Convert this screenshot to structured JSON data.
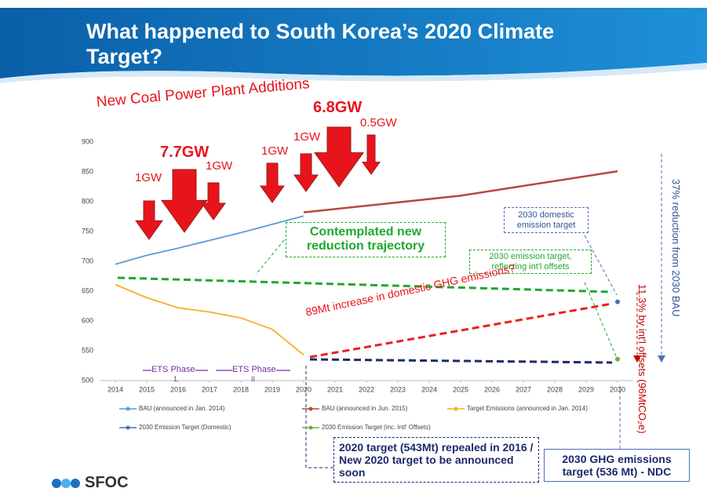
{
  "chart_data": {
    "type": "line",
    "title": "What happened to South Korea’s 2020 Climate Target?",
    "xlim": [
      2013.5,
      2030.5
    ],
    "xticks": [
      2014,
      2015,
      2016,
      2017,
      2018,
      2019,
      2020,
      2021,
      2022,
      2023,
      2024,
      2025,
      2026,
      2027,
      2028,
      2029,
      2030
    ],
    "ylim": [
      500,
      900
    ],
    "yticks": [
      500,
      550,
      600,
      650,
      700,
      750,
      800,
      850,
      900
    ],
    "grid": false,
    "series": [
      {
        "name": "BAU (announced in Jan. 2014)",
        "color": "#5b9bd5",
        "x": [
          2014,
          2015,
          2016,
          2017,
          2018,
          2019,
          2020
        ],
        "values": [
          695,
          710,
          722,
          735,
          748,
          762,
          776
        ]
      },
      {
        "name": "BAU (announced in Jun. 2015)",
        "color": "#b5493f",
        "x": [
          2020,
          2025,
          2030
        ],
        "values": [
          782,
          810,
          851
        ]
      },
      {
        "name": "Target  Emissions (announced in Jan. 2014)",
        "color": "#f4b022",
        "x": [
          2014,
          2015,
          2016,
          2017,
          2018,
          2019,
          2020
        ],
        "values": [
          661,
          639,
          622,
          615,
          605,
          586,
          543
        ]
      },
      {
        "name": "2030 Emission Target (Domestic)",
        "color": "#4a6fb5",
        "x": [
          2030
        ],
        "values": [
          632
        ]
      },
      {
        "name": "2030 Emission Target (inc. Intl' Offsets)",
        "color": "#70ad47",
        "x": [
          2030
        ],
        "values": [
          536
        ]
      }
    ],
    "annotations": [
      "New Coal Power Plant Additions",
      "7.7GW",
      "6.8GW",
      "1GW",
      "1GW",
      "1GW",
      "1GW",
      "0.5GW",
      "ETS Phase",
      "1",
      "ETS Phase",
      "II",
      "Contemplated new reduction trajectory",
      "2030 domestic emission target",
      "2030 emission target, reflecting int'l offsets",
      "89Mt increase in domestic GHG emissions?",
      "11.3% by int'l offsets (96MtCO₂e)",
      "37% reduction from 2030 BAU",
      "2020 target (543Mt) repealed in 2016 / New 2020 target to be announced soon",
      "2030 GHG emissions target (536 Mt) - NDC",
      "SFOC"
    ]
  }
}
